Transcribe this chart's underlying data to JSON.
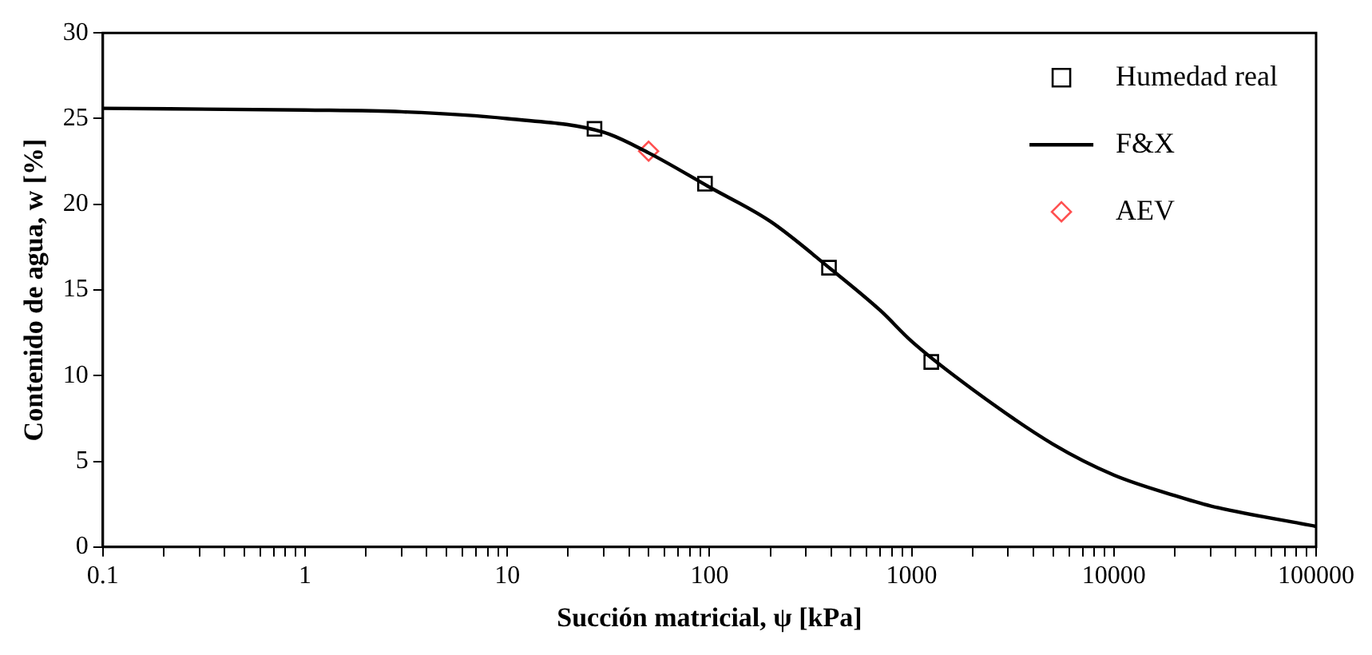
{
  "chart_data": {
    "type": "scatter",
    "xlabel": "Succión matricial, ψ [kPa]",
    "ylabel": "Contenido de agua, w [%]",
    "log": "x",
    "xlim": [
      0.1,
      100000
    ],
    "ylim": [
      0,
      30
    ],
    "xticks": [
      0.1,
      {
        "value": 0.2,
        "label": null
      },
      {
        "value": 0.3,
        "label": null
      },
      {
        "value": 0.4,
        "label": null
      },
      {
        "value": 0.5,
        "label": null
      },
      {
        "value": 0.6,
        "label": null
      },
      {
        "value": 0.7,
        "label": null
      },
      {
        "value": 0.8,
        "label": null
      },
      {
        "value": 0.9,
        "label": null
      },
      1,
      {
        "value": 2,
        "label": null
      },
      {
        "value": 3,
        "label": null
      },
      {
        "value": 4,
        "label": null
      },
      {
        "value": 5,
        "label": null
      },
      {
        "value": 6,
        "label": null
      },
      {
        "value": 7,
        "label": null
      },
      {
        "value": 8,
        "label": null
      },
      {
        "value": 9,
        "label": null
      },
      10,
      {
        "value": 20,
        "label": null
      },
      {
        "value": 30,
        "label": null
      },
      {
        "value": 40,
        "label": null
      },
      {
        "value": 50,
        "label": null
      },
      {
        "value": 60,
        "label": null
      },
      {
        "value": 70,
        "label": null
      },
      {
        "value": 80,
        "label": null
      },
      {
        "value": 90,
        "label": null
      },
      100,
      {
        "value": 200,
        "label": null
      },
      {
        "value": 300,
        "label": null
      },
      {
        "value": 400,
        "label": null
      },
      {
        "value": 500,
        "label": null
      },
      {
        "value": 600,
        "label": null
      },
      {
        "value": 700,
        "label": null
      },
      {
        "value": 800,
        "label": null
      },
      {
        "value": 900,
        "label": null
      },
      1000,
      {
        "value": 2000,
        "label": null
      },
      {
        "value": 3000,
        "label": null
      },
      {
        "value": 4000,
        "label": null
      },
      {
        "value": 5000,
        "label": null
      },
      {
        "value": 6000,
        "label": null
      },
      {
        "value": 7000,
        "label": null
      },
      {
        "value": 8000,
        "label": null
      },
      {
        "value": 9000,
        "label": null
      },
      10000,
      {
        "value": 20000,
        "label": null
      },
      {
        "value": 30000,
        "label": null
      },
      {
        "value": 40000,
        "label": null
      },
      {
        "value": 50000,
        "label": null
      },
      {
        "value": 60000,
        "label": null
      },
      {
        "value": 70000,
        "label": null
      },
      {
        "value": 80000,
        "label": null
      },
      {
        "value": 90000,
        "label": null
      },
      100000
    ],
    "yticks": [
      0,
      5,
      10,
      15,
      20,
      25,
      30
    ],
    "grid": false,
    "legend": "top right",
    "series": [
      {
        "name": "Humedad real",
        "marker": "square",
        "color": "#000000",
        "x": [
          27,
          95,
          390,
          1250
        ],
        "values": [
          24.4,
          21.2,
          16.3,
          10.8
        ]
      },
      {
        "name": "F&X",
        "type": "line",
        "marker": "none",
        "color": "#000000",
        "x": [
          0.1,
          1,
          3,
          10,
          30,
          50,
          100,
          200,
          400,
          700,
          1000,
          2000,
          5000,
          10000,
          20000,
          30000,
          100000
        ],
        "values": [
          25.6,
          25.5,
          25.4,
          25.0,
          24.2,
          23.0,
          21.0,
          19.0,
          16.2,
          13.8,
          12.0,
          9.2,
          6.0,
          4.2,
          3.0,
          2.4,
          1.2
        ]
      },
      {
        "name": "AEV",
        "marker": "diamond",
        "color": "#ff5050",
        "x": [
          50
        ],
        "values": [
          23.1
        ]
      }
    ]
  }
}
